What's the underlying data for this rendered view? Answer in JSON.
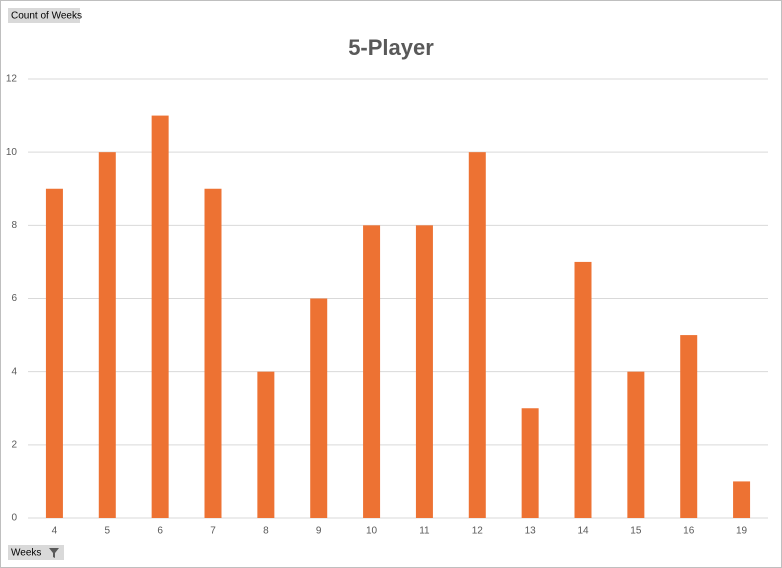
{
  "chart_data": {
    "type": "bar",
    "title": "5-Player",
    "value_field_button": "Count of Weeks",
    "axis_field_button": "Weeks",
    "categories": [
      "4",
      "5",
      "6",
      "7",
      "8",
      "9",
      "10",
      "11",
      "12",
      "13",
      "14",
      "15",
      "16",
      "19"
    ],
    "values": [
      9,
      10,
      11,
      9,
      4,
      6,
      8,
      8,
      10,
      3,
      7,
      4,
      5,
      1
    ],
    "color": "#ed7233",
    "ylim": [
      0,
      12
    ],
    "yticks": [
      0,
      2,
      4,
      6,
      8,
      10,
      12
    ],
    "grid": true
  }
}
